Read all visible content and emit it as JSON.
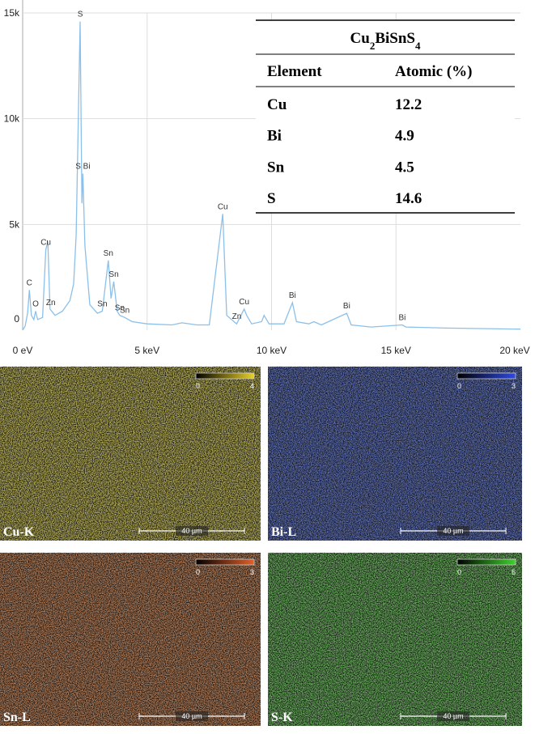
{
  "chart_data": {
    "type": "line",
    "x": [
      0,
      0.1,
      0.2,
      0.27,
      0.35,
      0.45,
      0.52,
      0.6,
      0.8,
      0.93,
      1.01,
      1.1,
      1.3,
      1.6,
      1.9,
      2.05,
      2.15,
      2.31,
      2.38,
      2.42,
      2.5,
      2.7,
      3.0,
      3.2,
      3.44,
      3.55,
      3.66,
      3.8,
      3.9,
      4.1,
      4.4,
      5,
      6,
      6.4,
      7,
      7.5,
      8.04,
      8.2,
      8.6,
      8.9,
      9.0,
      9.2,
      9.6,
      9.7,
      9.9,
      10.5,
      10.84,
      11.0,
      11.5,
      11.7,
      12,
      13.02,
      13.2,
      14,
      15.25,
      15.4,
      17,
      20
    ],
    "values": [
      0,
      200,
      800,
      1900,
      700,
      500,
      900,
      500,
      600,
      3800,
      4200,
      1000,
      700,
      900,
      1400,
      2200,
      4500,
      14600,
      6000,
      7400,
      4000,
      1200,
      800,
      900,
      3300,
      1500,
      2300,
      900,
      700,
      600,
      400,
      300,
      250,
      350,
      250,
      250,
      5500,
      700,
      300,
      1000,
      700,
      300,
      400,
      700,
      300,
      300,
      1300,
      400,
      300,
      400,
      250,
      800,
      250,
      150,
      250,
      150,
      100,
      50
    ],
    "color": "#8cc0ea",
    "xlim": [
      0,
      20
    ],
    "ylim": [
      0,
      15000
    ],
    "xticks": [
      {
        "value": 0,
        "label": "0 eV"
      },
      {
        "value": 5,
        "label": "5 keV"
      },
      {
        "value": 10,
        "label": "10 keV"
      },
      {
        "value": 15,
        "label": "15 keV"
      },
      {
        "value": 20,
        "label": "20 keV"
      }
    ],
    "yticks": [
      0,
      {
        "value": 5000,
        "label": "5k"
      },
      {
        "value": 10000,
        "label": "10k"
      },
      {
        "value": 15000,
        "label": "15k"
      }
    ],
    "grid": true,
    "annotations": [
      {
        "text": "C",
        "x": 0.27
      },
      {
        "text": "O",
        "x": 0.52
      },
      {
        "text": "Cu",
        "x": 0.93
      },
      {
        "text": "Zn",
        "x": 1.13
      },
      {
        "text": "S",
        "x": 2.31
      },
      {
        "text": "S Bi",
        "x": 2.42
      },
      {
        "text": "Sn",
        "x": 3.2
      },
      {
        "text": "Sn",
        "x": 3.44
      },
      {
        "text": "Sn",
        "x": 3.66
      },
      {
        "text": "Sn",
        "x": 3.9
      },
      {
        "text": "Sn",
        "x": 4.1
      },
      {
        "text": "Cu",
        "x": 8.04
      },
      {
        "text": "Zn",
        "x": 8.6
      },
      {
        "text": "Cu",
        "x": 8.9
      },
      {
        "text": "Bi",
        "x": 10.84
      },
      {
        "text": "Bi",
        "x": 13.02
      },
      {
        "text": "Bi",
        "x": 15.25
      }
    ]
  },
  "table": {
    "title_parts": [
      {
        "text": "Cu"
      },
      {
        "text": "2",
        "sub": true
      },
      {
        "text": "BiSnS"
      },
      {
        "text": "4",
        "sub": true
      }
    ],
    "header": [
      "Element",
      "Atomic (%)"
    ],
    "rows": [
      [
        "Cu",
        12.2
      ],
      [
        "Bi",
        4.9
      ],
      [
        "Sn",
        4.5
      ],
      [
        "S",
        14.6
      ]
    ]
  },
  "maps": [
    {
      "label": "Cu-K",
      "color": "#e8d02a",
      "scale_min": 0,
      "scale_max": 4,
      "scale_bar": "40 µm"
    },
    {
      "label": "Bi-L",
      "color": "#3048e0",
      "scale_min": 0,
      "scale_max": 3,
      "scale_bar": "40 µm"
    },
    {
      "label": "Sn-L",
      "color": "#e0602a",
      "scale_min": 0,
      "scale_max": 3,
      "scale_bar": "40 µm"
    },
    {
      "label": "S-K",
      "color": "#40d030",
      "scale_min": 0,
      "scale_max": 6,
      "scale_bar": "40 µm"
    }
  ]
}
